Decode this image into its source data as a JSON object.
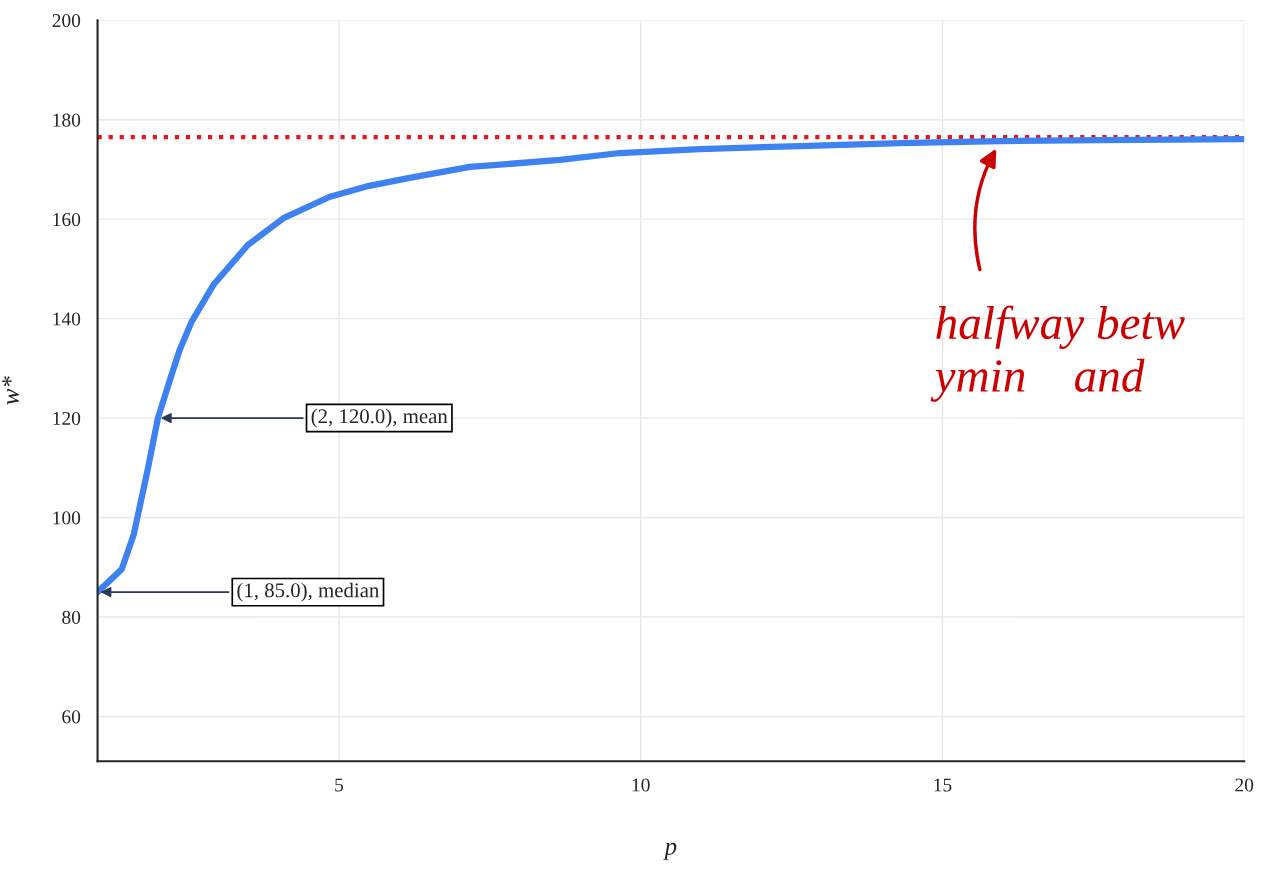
{
  "chart_data": {
    "type": "line",
    "xlabel": "p",
    "ylabel": "w*",
    "x": [
      1,
      1.4,
      1.6,
      1.83,
      2,
      2.2,
      2.36,
      2.56,
      2.92,
      3.49,
      4.08,
      4.85,
      5.5,
      6.17,
      7.17,
      8.66,
      9.66,
      10.98,
      12.64,
      14.3,
      15.96,
      17.6,
      20
    ],
    "series": [
      {
        "color": "#3d82f0",
        "values": [
          85,
          89.6,
          96.6,
          109.6,
          120,
          127.7,
          133.7,
          139.4,
          146.8,
          154.8,
          160.2,
          164.5,
          166.7,
          168.3,
          170.5,
          171.9,
          173.3,
          174.1,
          174.7,
          175.3,
          175.7,
          175.9,
          176.1
        ]
      }
    ],
    "xlim": [
      1,
      20
    ],
    "ylim": [
      51,
      200
    ],
    "xticks": [
      5,
      10,
      15,
      20
    ],
    "yticks": [
      60,
      80,
      100,
      120,
      140,
      160,
      180,
      200
    ],
    "grid": true,
    "line_style": "solid",
    "marker": "none",
    "ref_lines": [
      {
        "axis": "y",
        "value": 176.5,
        "color": "#e8141c",
        "line_style": "dotted"
      }
    ],
    "annotations": [
      {
        "text": "(2, 120.0), mean",
        "x": 2,
        "y": 120
      },
      {
        "text": "(1, 85.0), median",
        "x": 1,
        "y": 85
      },
      "halfway betw\nymin    and"
    ]
  }
}
